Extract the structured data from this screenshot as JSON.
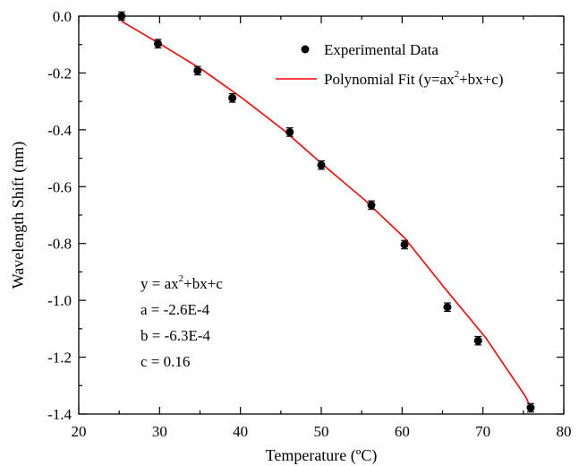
{
  "chart_data": {
    "type": "scatter",
    "xlabel": "Temperature (ºC)",
    "ylabel": "Wavelength Shift (nm)",
    "xlim": [
      20,
      80
    ],
    "ylim": [
      -1.4,
      0.0
    ],
    "xticks": [
      "20",
      "30",
      "40",
      "50",
      "60",
      "70",
      "80"
    ],
    "yticks": [
      "0.0",
      "-0.2",
      "-0.4",
      "-0.6",
      "-0.8",
      "-1.0",
      "-1.2",
      "-1.4"
    ],
    "grid": false,
    "legend_position": "top-right",
    "series": [
      {
        "name": "Experimental Data",
        "type": "scatter",
        "color": "#000000",
        "x": [
          25.3,
          29.8,
          34.7,
          39.0,
          46.1,
          50.0,
          56.2,
          60.3,
          65.6,
          69.4,
          75.9
        ],
        "y": [
          0.0,
          -0.097,
          -0.192,
          -0.288,
          -0.408,
          -0.524,
          -0.665,
          -0.804,
          -1.024,
          -1.142,
          -1.378
        ],
        "error": [
          0.015,
          0.015,
          0.015,
          0.015,
          0.015,
          0.015,
          0.015,
          0.015,
          0.015,
          0.015,
          0.015
        ]
      },
      {
        "name": "Polynomial Fit (y=ax²+bx+c)",
        "type": "line",
        "color": "#ff0000",
        "x": [
          25.3,
          30.3,
          35.3,
          40.3,
          45.3,
          50.3,
          55.3,
          60.3,
          65.3,
          70.3,
          75.3,
          76.0
        ],
        "y": [
          -0.018,
          -0.102,
          -0.189,
          -0.29,
          -0.4,
          -0.525,
          -0.645,
          -0.78,
          -0.958,
          -1.13,
          -1.34,
          -1.385
        ]
      }
    ],
    "legend": {
      "items": [
        {
          "label_main": "Experimental Data",
          "label_sup": "",
          "label_tail": "",
          "symbol": "dot"
        },
        {
          "label_main": "Polynomial Fit (y=ax",
          "label_sup": "2",
          "label_tail": "+bx+c)",
          "symbol": "line"
        }
      ]
    },
    "annotation": {
      "eq_main": "y = ax",
      "eq_sup": "2",
      "eq_tail": "+bx+c",
      "a_line": "a = -2.6E-4",
      "b_line": "b = -6.3E-4",
      "c_line": "c =  0.16"
    }
  }
}
